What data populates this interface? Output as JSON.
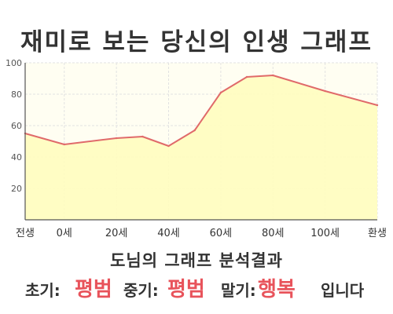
{
  "title": "재미로 보는 당신의 인생 그래프",
  "chart_data": {
    "type": "area",
    "x": [
      -15,
      0,
      20,
      30,
      40,
      50,
      60,
      70,
      80,
      100,
      120
    ],
    "y": [
      55,
      48,
      52,
      53,
      47,
      57,
      81,
      91,
      92,
      82,
      73
    ],
    "xticks": [
      {
        "value": -15,
        "label": "전생"
      },
      {
        "value": 0,
        "label": "0세"
      },
      {
        "value": 20,
        "label": "20세"
      },
      {
        "value": 40,
        "label": "40세"
      },
      {
        "value": 60,
        "label": "60세"
      },
      {
        "value": 80,
        "label": "80세"
      },
      {
        "value": 100,
        "label": "100세"
      },
      {
        "value": 120,
        "label": "환생"
      }
    ],
    "yticks": [
      20,
      40,
      60,
      80,
      100
    ],
    "ylim": [
      0,
      100
    ],
    "grid": true,
    "colors": {
      "line": "#e06a6a",
      "fill": "#fffdbf",
      "plot_bg": "#fffef2",
      "grid": "#e2e2e2",
      "axis": "#555555"
    }
  },
  "result": {
    "subtitle": "도님의 그래프 분석결과",
    "early_label": "초기:",
    "early_value": "평범",
    "middle_label": "중기:",
    "middle_value": "평범",
    "late_label": "말기:",
    "late_value": "행복",
    "suffix": "입니다",
    "highlight_color": "#e8535b"
  }
}
